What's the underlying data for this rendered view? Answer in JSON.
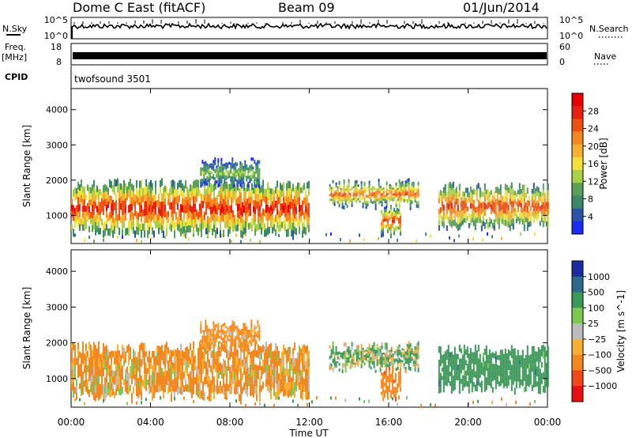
{
  "header": {
    "station": "Dome C East (fitACF)",
    "beam": "Beam 09",
    "date": "01/Jun/2014"
  },
  "panels": {
    "noise": {
      "left_label": "N.Sky",
      "left_ticks": [
        "10^5",
        "10^0"
      ],
      "right_ticks": [
        "10^5",
        "10^0"
      ],
      "right_label": "N.Search"
    },
    "freq": {
      "left_label_1": "Freq.",
      "left_label_2": "[MHz]",
      "left_ticks": [
        "18",
        "8"
      ],
      "right_ticks": [
        "60",
        "0"
      ],
      "right_label": "Nave"
    },
    "cpid": {
      "label": "CPID",
      "value": "twofsound 3501"
    }
  },
  "colors": {
    "power_scale": [
      "#1a2cf0",
      "#2a52a8",
      "#3a8a6a",
      "#5aa05a",
      "#a8d048",
      "#f0e038",
      "#f8b030",
      "#f48820",
      "#f05010",
      "#e82010",
      "#e80000"
    ],
    "velocity_scale": [
      "#e81010",
      "#f04818",
      "#f48820",
      "#f8b030",
      "#bcbcbc",
      "#7cc850",
      "#3a9a58",
      "#2a6a8a",
      "#1a2aa0"
    ]
  },
  "chart_data": [
    {
      "type": "heatmap",
      "title": "Power",
      "xlabel": "Time UT",
      "ylabel": "Slant Range [km]",
      "xlim": [
        "00:00",
        "24:00"
      ],
      "ylim": [
        200,
        4600
      ],
      "x_ticks": [
        "00:00",
        "04:00",
        "08:00",
        "12:00",
        "16:00",
        "20:00",
        "00:00"
      ],
      "y_ticks": [
        "1000",
        "2000",
        "3000",
        "4000"
      ],
      "colorbar": {
        "label": "Power [dB]",
        "ticks": [
          "4",
          "8",
          "12",
          "16",
          "20",
          "24",
          "28"
        ],
        "range": [
          0,
          30
        ]
      },
      "echo_regions": [
        {
          "t_start": 0.0,
          "t_end": 12.0,
          "range_low": 500,
          "range_high": 1900,
          "peak_power_db": 30
        },
        {
          "t_start": 6.5,
          "t_end": 9.5,
          "range_low": 1900,
          "range_high": 2500,
          "peak_power_db": 14
        },
        {
          "t_start": 13.0,
          "t_end": 17.5,
          "range_low": 1300,
          "range_high": 1900,
          "peak_power_db": 26
        },
        {
          "t_start": 15.6,
          "t_end": 16.6,
          "range_low": 500,
          "range_high": 1200,
          "peak_power_db": 28
        },
        {
          "t_start": 18.5,
          "t_end": 24.0,
          "range_low": 700,
          "range_high": 1800,
          "peak_power_db": 28
        }
      ]
    },
    {
      "type": "heatmap",
      "title": "Velocity",
      "xlabel": "Time UT",
      "ylabel": "Slant Range [km]",
      "xlim": [
        "00:00",
        "24:00"
      ],
      "ylim": [
        200,
        4600
      ],
      "x_ticks": [
        "00:00",
        "04:00",
        "08:00",
        "12:00",
        "16:00",
        "20:00",
        "00:00"
      ],
      "y_ticks": [
        "1000",
        "2000",
        "3000",
        "4000"
      ],
      "colorbar": {
        "label": "Velocity [m s^-1]",
        "ticks": [
          "1000",
          "500",
          "100",
          "25",
          "−25",
          "−100",
          "−500",
          "−1000"
        ]
      },
      "echo_regions": [
        {
          "t_start": 0.0,
          "t_end": 12.0,
          "range_low": 500,
          "range_high": 1900,
          "velocity_ms": -150
        },
        {
          "t_start": 6.5,
          "t_end": 9.5,
          "range_low": 1900,
          "range_high": 2500,
          "velocity_ms": -200
        },
        {
          "t_start": 13.0,
          "t_end": 17.5,
          "range_low": 1300,
          "range_high": 1900,
          "velocity_ms": 100
        },
        {
          "t_start": 15.6,
          "t_end": 16.6,
          "range_low": 500,
          "range_high": 1200,
          "velocity_ms": -300
        },
        {
          "t_start": 18.5,
          "t_end": 24.0,
          "range_low": 700,
          "range_high": 1800,
          "velocity_ms": 300
        }
      ]
    }
  ]
}
